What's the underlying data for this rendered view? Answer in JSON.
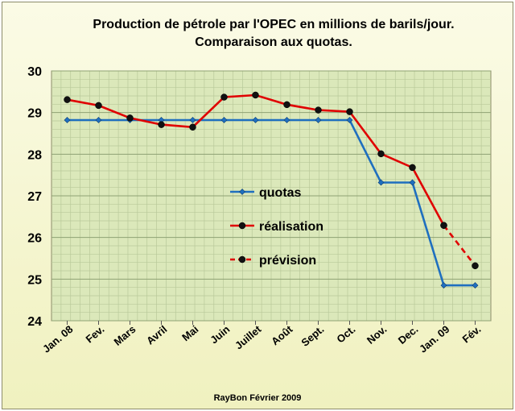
{
  "chart_data": {
    "type": "line",
    "title_line1": "Production de pétrole par l'OPEC en millions de barils/jour.",
    "title_line2": "Comparaison aux quotas.",
    "footer": "RayBon Février 2009",
    "categories": [
      "Jan. 08",
      "Fev.",
      "Mars",
      "Avril",
      "Mai",
      "Juin",
      "Juillet",
      "Août",
      "Sept.",
      "Oct.",
      "Nov.",
      "Dec.",
      "Jan. 09",
      "Fév."
    ],
    "ylim": [
      24,
      30
    ],
    "yticks": [
      24,
      25,
      26,
      27,
      28,
      29,
      30
    ],
    "grid": true,
    "legend_position": "center",
    "series": [
      {
        "name": "quotas",
        "color": "#1f6fbf",
        "marker": "diamond",
        "dash": false,
        "values": [
          28.82,
          28.82,
          28.82,
          28.82,
          28.82,
          28.82,
          28.82,
          28.82,
          28.82,
          28.82,
          27.32,
          27.32,
          24.85,
          24.85
        ]
      },
      {
        "name": "réalisation",
        "color": "#e00000",
        "marker": "circle",
        "dash": false,
        "values": [
          29.31,
          29.17,
          28.87,
          28.71,
          28.65,
          29.37,
          29.42,
          29.19,
          29.06,
          29.02,
          28.01,
          27.68,
          26.29,
          null
        ]
      },
      {
        "name": "prévision",
        "color": "#e00000",
        "marker": "circle",
        "dash": true,
        "values": [
          null,
          null,
          null,
          null,
          null,
          null,
          null,
          null,
          null,
          null,
          null,
          null,
          26.29,
          25.32
        ]
      }
    ]
  }
}
